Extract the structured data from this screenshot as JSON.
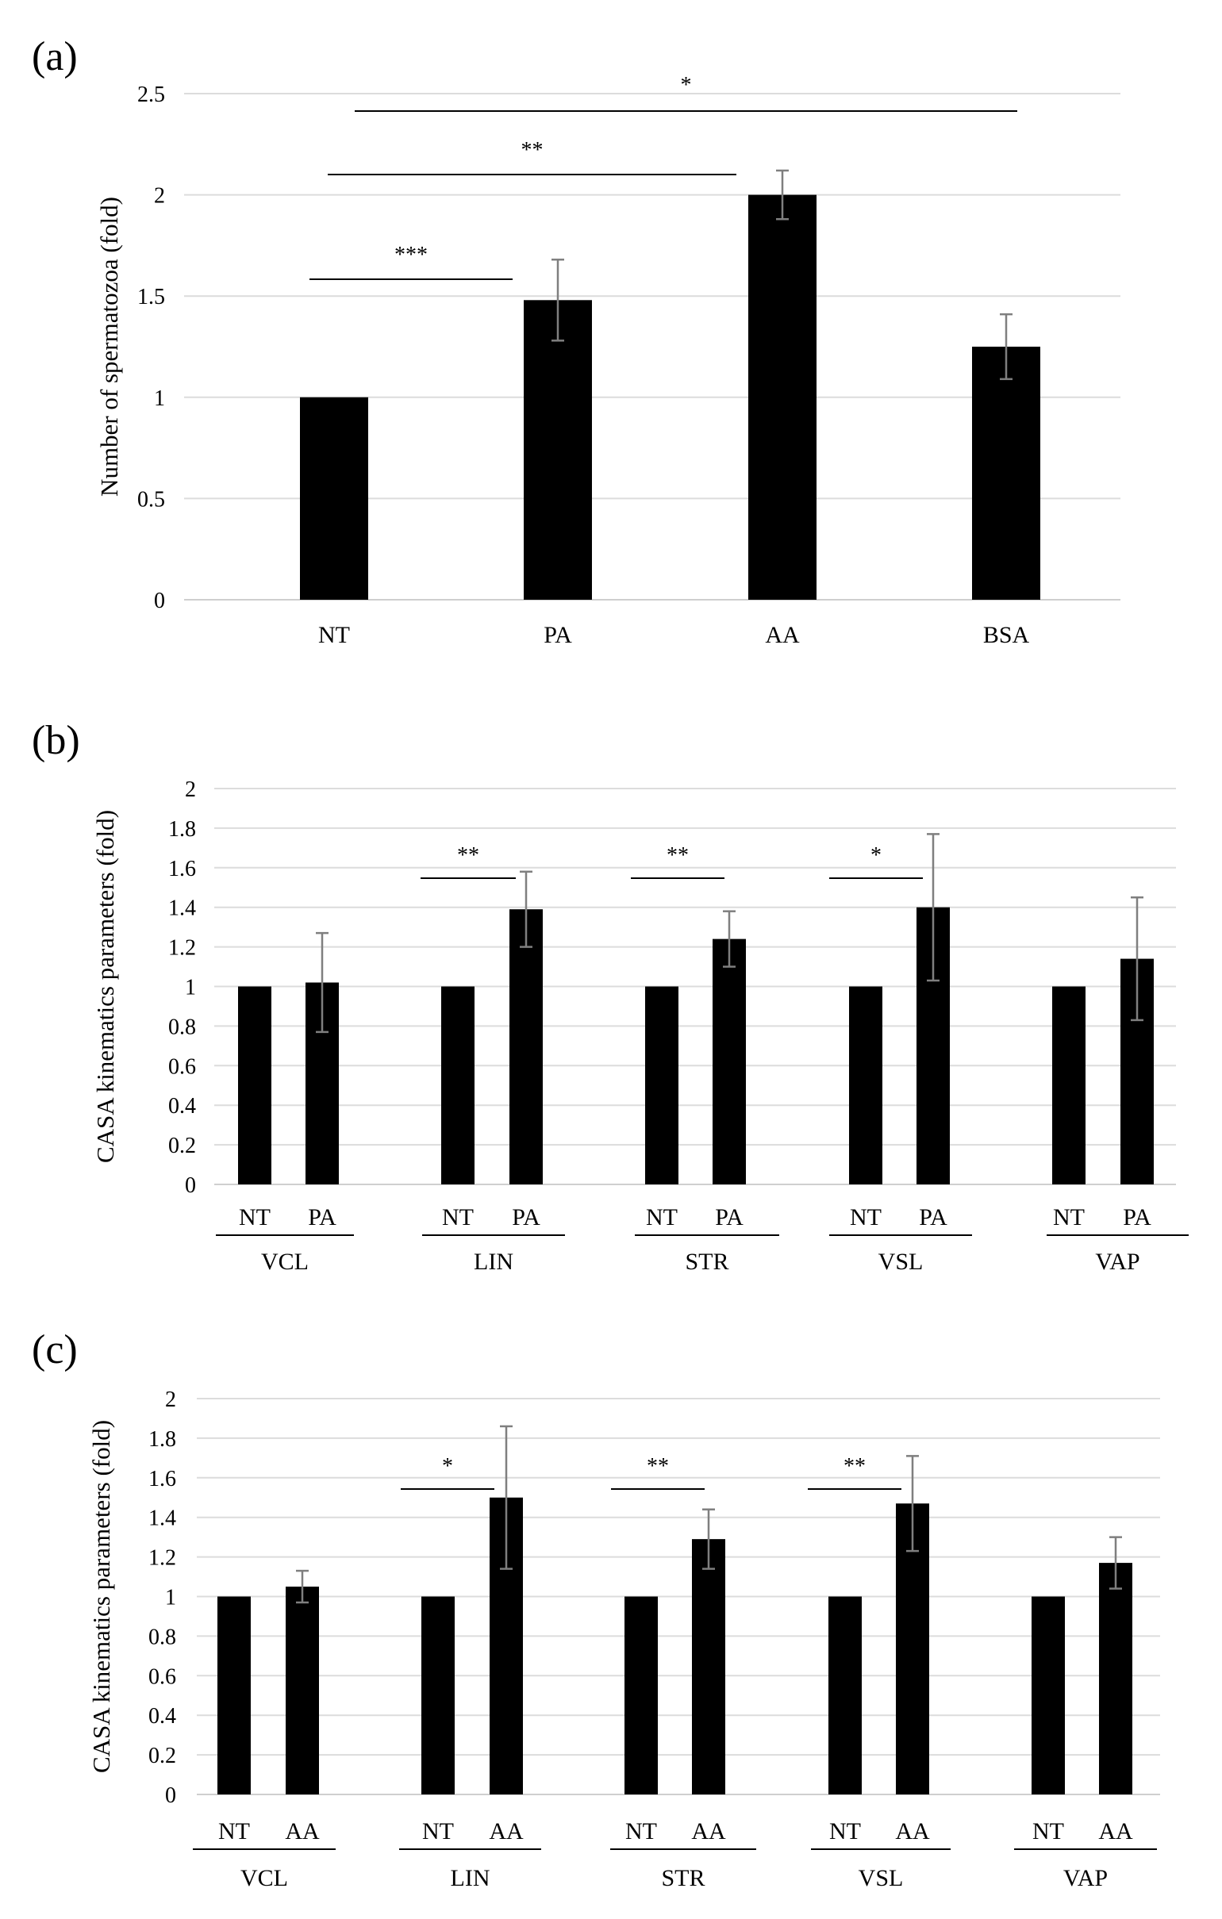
{
  "figure": {
    "title": ""
  },
  "chart_data": [
    {
      "panel": "(a)",
      "type": "bar",
      "ylabel": "Number of spermatozoa  (fold)",
      "ylim": [
        0,
        2.5
      ],
      "ytick_step": 0.5,
      "yticks": [
        "0",
        "0.5",
        "1",
        "1.5",
        "2",
        "2.5"
      ],
      "grid": true,
      "categories": [
        "NT",
        "PA",
        "AA",
        "BSA"
      ],
      "values": [
        1.0,
        1.48,
        2.0,
        1.25
      ],
      "errors": [
        0,
        0.2,
        0.12,
        0.16
      ],
      "significance": [
        {
          "from": 0,
          "to": 3,
          "label": "*"
        },
        {
          "from": 0,
          "to": 2,
          "label": "**"
        },
        {
          "from": 0,
          "to": 1,
          "label": "***"
        }
      ]
    },
    {
      "panel": "(b)",
      "type": "bar",
      "ylabel": "CASA kinematics parameters (fold)",
      "ylim": [
        0,
        2
      ],
      "ytick_step": 0.2,
      "yticks": [
        "0",
        "0.2",
        "0.4",
        "0.6",
        "0.8",
        "1",
        "1.2",
        "1.4",
        "1.6",
        "1.8",
        "2"
      ],
      "grid": true,
      "groups": [
        {
          "name": "VCL",
          "labels": [
            "NT",
            "PA"
          ],
          "values": [
            1.0,
            1.02
          ],
          "errors": [
            0,
            0.25
          ],
          "sig": ""
        },
        {
          "name": "LIN",
          "labels": [
            "NT",
            "PA"
          ],
          "values": [
            1.0,
            1.39
          ],
          "errors": [
            0,
            0.19
          ],
          "sig": "**"
        },
        {
          "name": "STR",
          "labels": [
            "NT",
            "PA"
          ],
          "values": [
            1.0,
            1.24
          ],
          "errors": [
            0,
            0.14
          ],
          "sig": "**"
        },
        {
          "name": "VSL",
          "labels": [
            "NT",
            "PA"
          ],
          "values": [
            1.0,
            1.4
          ],
          "errors": [
            0,
            0.37
          ],
          "sig": "*"
        },
        {
          "name": "VAP",
          "labels": [
            "NT",
            "PA"
          ],
          "values": [
            1.0,
            1.14
          ],
          "errors": [
            0,
            0.31
          ],
          "sig": ""
        }
      ]
    },
    {
      "panel": "(c)",
      "type": "bar",
      "ylabel": "CASA kinematics parameters (fold)",
      "ylim": [
        0,
        2
      ],
      "ytick_step": 0.2,
      "yticks": [
        "0",
        "0.2",
        "0.4",
        "0.6",
        "0.8",
        "1",
        "1.2",
        "1.4",
        "1.6",
        "1.8",
        "2"
      ],
      "grid": true,
      "groups": [
        {
          "name": "VCL",
          "labels": [
            "NT",
            "AA"
          ],
          "values": [
            1.0,
            1.05
          ],
          "errors": [
            0,
            0.08
          ],
          "sig": ""
        },
        {
          "name": "LIN",
          "labels": [
            "NT",
            "AA"
          ],
          "values": [
            1.0,
            1.5
          ],
          "errors": [
            0,
            0.36
          ],
          "sig": "*"
        },
        {
          "name": "STR",
          "labels": [
            "NT",
            "AA"
          ],
          "values": [
            1.0,
            1.29
          ],
          "errors": [
            0,
            0.15
          ],
          "sig": "**"
        },
        {
          "name": "VSL",
          "labels": [
            "NT",
            "AA"
          ],
          "values": [
            1.0,
            1.47
          ],
          "errors": [
            0,
            0.24
          ],
          "sig": "**"
        },
        {
          "name": "VAP",
          "labels": [
            "NT",
            "AA"
          ],
          "values": [
            1.0,
            1.17
          ],
          "errors": [
            0,
            0.13
          ],
          "sig": ""
        }
      ]
    }
  ]
}
